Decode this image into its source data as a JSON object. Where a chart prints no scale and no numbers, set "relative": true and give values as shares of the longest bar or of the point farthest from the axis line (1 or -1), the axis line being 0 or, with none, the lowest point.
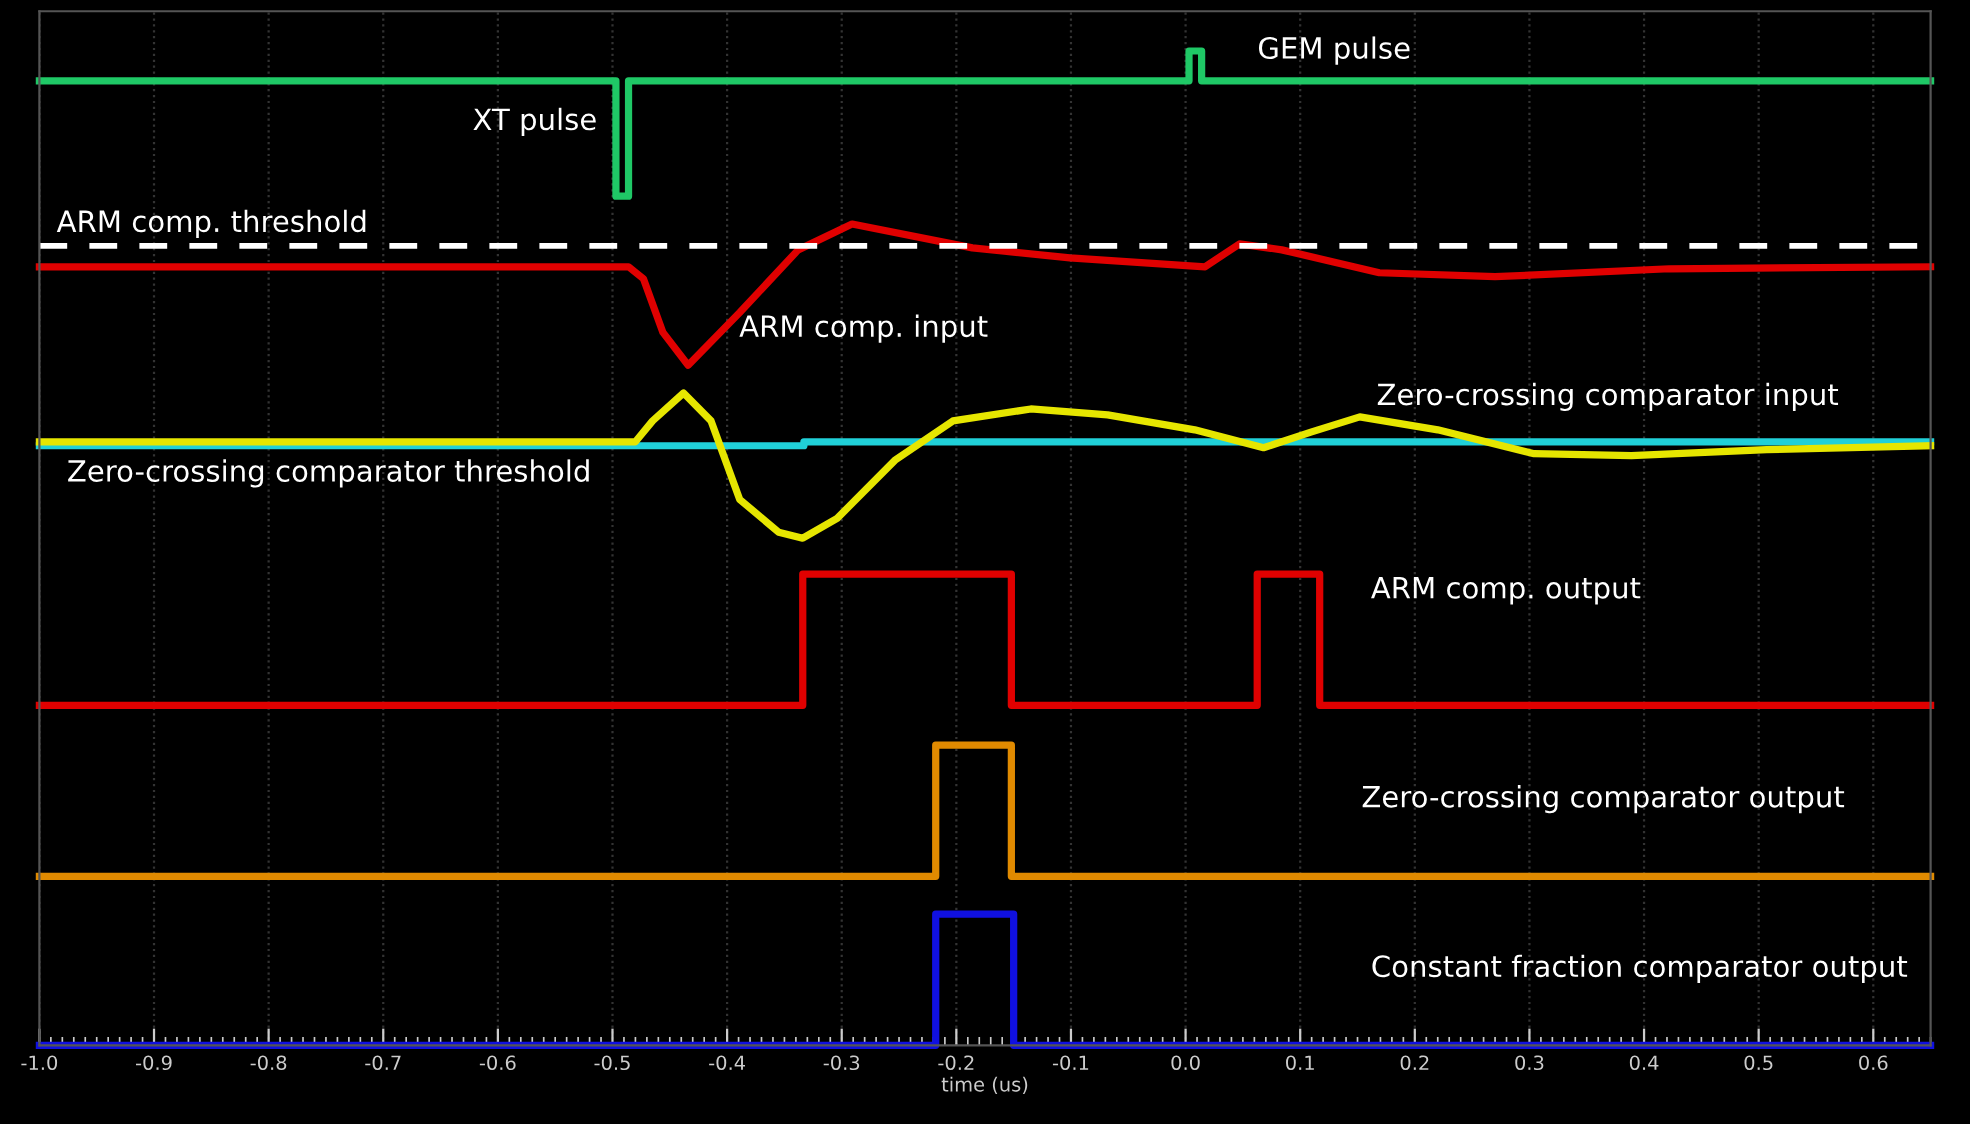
{
  "chart_data": {
    "type": "line",
    "relative": true,
    "xlabel": "time (us)",
    "xlim": [
      -1.0,
      0.65
    ],
    "xticks": [
      {
        "value": -1,
        "label": "-1.0"
      },
      -0.9,
      -0.8,
      -0.7,
      -0.6,
      -0.5,
      -0.4,
      -0.3,
      -0.2,
      -0.1,
      {
        "value": 0,
        "label": "0.0"
      },
      0.1,
      0.2,
      0.3,
      0.4,
      0.5,
      0.6
    ],
    "grid": "x",
    "line_style": "solid",
    "marker": "none",
    "ref_lines": [
      {
        "axis": "y",
        "value": 0.804,
        "label": "ARM comp. threshold",
        "color": "#ffffff",
        "line_style": "dashed"
      }
    ],
    "series": [
      {
        "color": "#1fc866",
        "x": [
          -1.0,
          -0.497,
          -0.497,
          -0.486,
          -0.486,
          0.003,
          0.003,
          0.014,
          0.014,
          0.65
        ],
        "values": [
          0.97,
          0.97,
          0.854,
          0.854,
          0.97,
          0.97,
          1.0,
          1.0,
          0.97,
          0.97
        ]
      },
      {
        "name": "ARM comp. input",
        "color": "#e00000",
        "x": [
          -1.0,
          -0.486,
          -0.473,
          -0.456,
          -0.434,
          -0.389,
          -0.338,
          -0.291,
          -0.186,
          -0.101,
          0.017,
          0.047,
          0.084,
          0.169,
          0.27,
          0.422,
          0.65
        ],
        "values": [
          0.783,
          0.783,
          0.771,
          0.717,
          0.684,
          0.737,
          0.8,
          0.826,
          0.802,
          0.792,
          0.783,
          0.806,
          0.8,
          0.777,
          0.773,
          0.781,
          0.783
        ]
      },
      {
        "name": "Zero-crossing comparator threshold",
        "color": "#20d0d8",
        "x": [
          -1.0,
          -0.333,
          -0.333,
          0.65
        ],
        "values": [
          0.603,
          0.603,
          0.607,
          0.607
        ]
      },
      {
        "name": "Zero-crossing comparator input",
        "color": "#e6e600",
        "x": [
          -1.0,
          -0.48,
          -0.465,
          -0.438,
          -0.414,
          -0.389,
          -0.355,
          -0.334,
          -0.304,
          -0.253,
          -0.203,
          -0.135,
          -0.068,
          0.008,
          0.068,
          0.11,
          0.152,
          0.22,
          0.304,
          0.389,
          0.507,
          0.65
        ],
        "values": [
          0.607,
          0.607,
          0.628,
          0.656,
          0.628,
          0.549,
          0.516,
          0.51,
          0.53,
          0.589,
          0.628,
          0.64,
          0.634,
          0.619,
          0.601,
          0.617,
          0.632,
          0.619,
          0.595,
          0.593,
          0.599,
          0.603
        ]
      },
      {
        "name": "ARM comp. output",
        "color": "#e00000",
        "x": [
          -1.0,
          -0.334,
          -0.334,
          -0.152,
          -0.152,
          0.0625,
          0.0625,
          0.117,
          0.117,
          0.65
        ],
        "values": [
          0.342,
          0.342,
          0.474,
          0.474,
          0.342,
          0.342,
          0.474,
          0.474,
          0.342,
          0.342
        ]
      },
      {
        "name": "Zero-crossing comparator output",
        "color": "#e08a00",
        "x": [
          -1.0,
          -0.218,
          -0.218,
          -0.152,
          -0.152,
          0.65
        ],
        "values": [
          0.17,
          0.17,
          0.302,
          0.302,
          0.17,
          0.17
        ]
      },
      {
        "name": "Constant fraction comparator output",
        "color": "#1010e0",
        "x": [
          -1.0,
          -0.218,
          -0.218,
          -0.15,
          -0.15,
          0.65
        ],
        "values": [
          0.0,
          0.0,
          0.132,
          0.132,
          0.0,
          0.0
        ]
      }
    ],
    "annotations": [
      "XT pulse",
      "GEM pulse"
    ]
  }
}
